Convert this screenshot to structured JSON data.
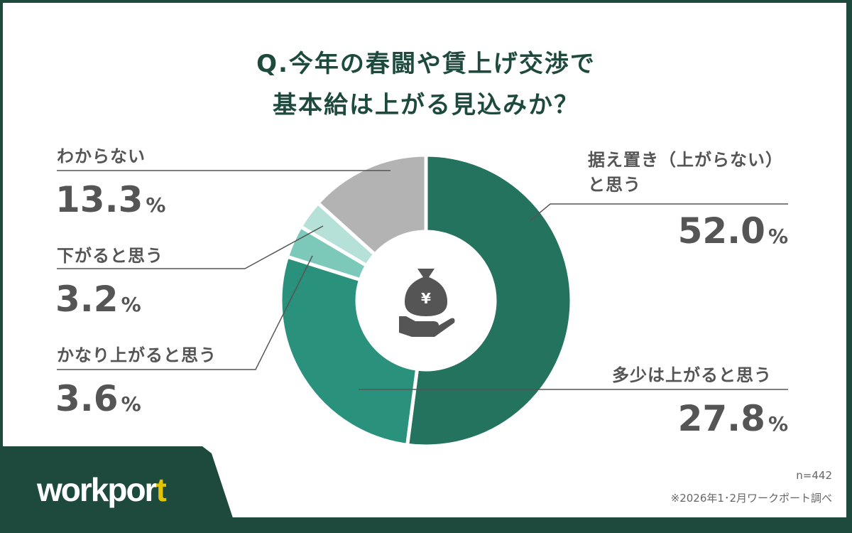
{
  "title_line1": "Q.今年の春闘や賃上げ交渉で",
  "title_line2": "基本給は上がる見込みか？",
  "chart_data": {
    "type": "pie",
    "donut": true,
    "start": "top, clockwise",
    "categories": [
      "据え置き（上がらない）と思う",
      "多少は上がると思う",
      "かなり上がると思う",
      "下がると思う",
      "わからない"
    ],
    "values": [
      52.0,
      27.8,
      3.6,
      3.2,
      13.3
    ],
    "value_labels": [
      "52.0",
      "27.8",
      "3.6",
      "3.2",
      "13.3"
    ],
    "unit": "%",
    "colors": [
      "#23735f",
      "#2a917c",
      "#7cc8b9",
      "#b5e1d8",
      "#b3b3b3"
    ],
    "center_icon": "money-bag-hand-icon"
  },
  "labels": {
    "flat_line1": "据え置き（上がらない）",
    "flat_line2": "と思う",
    "some": "多少は上がると思う",
    "much": "かなり上がると思う",
    "down": "下がると思う",
    "unknown": "わからない"
  },
  "sample": "n=442",
  "source": "※2026年1･2月ワークポート調べ",
  "logo": {
    "main": "workpor",
    "accent": "t"
  }
}
